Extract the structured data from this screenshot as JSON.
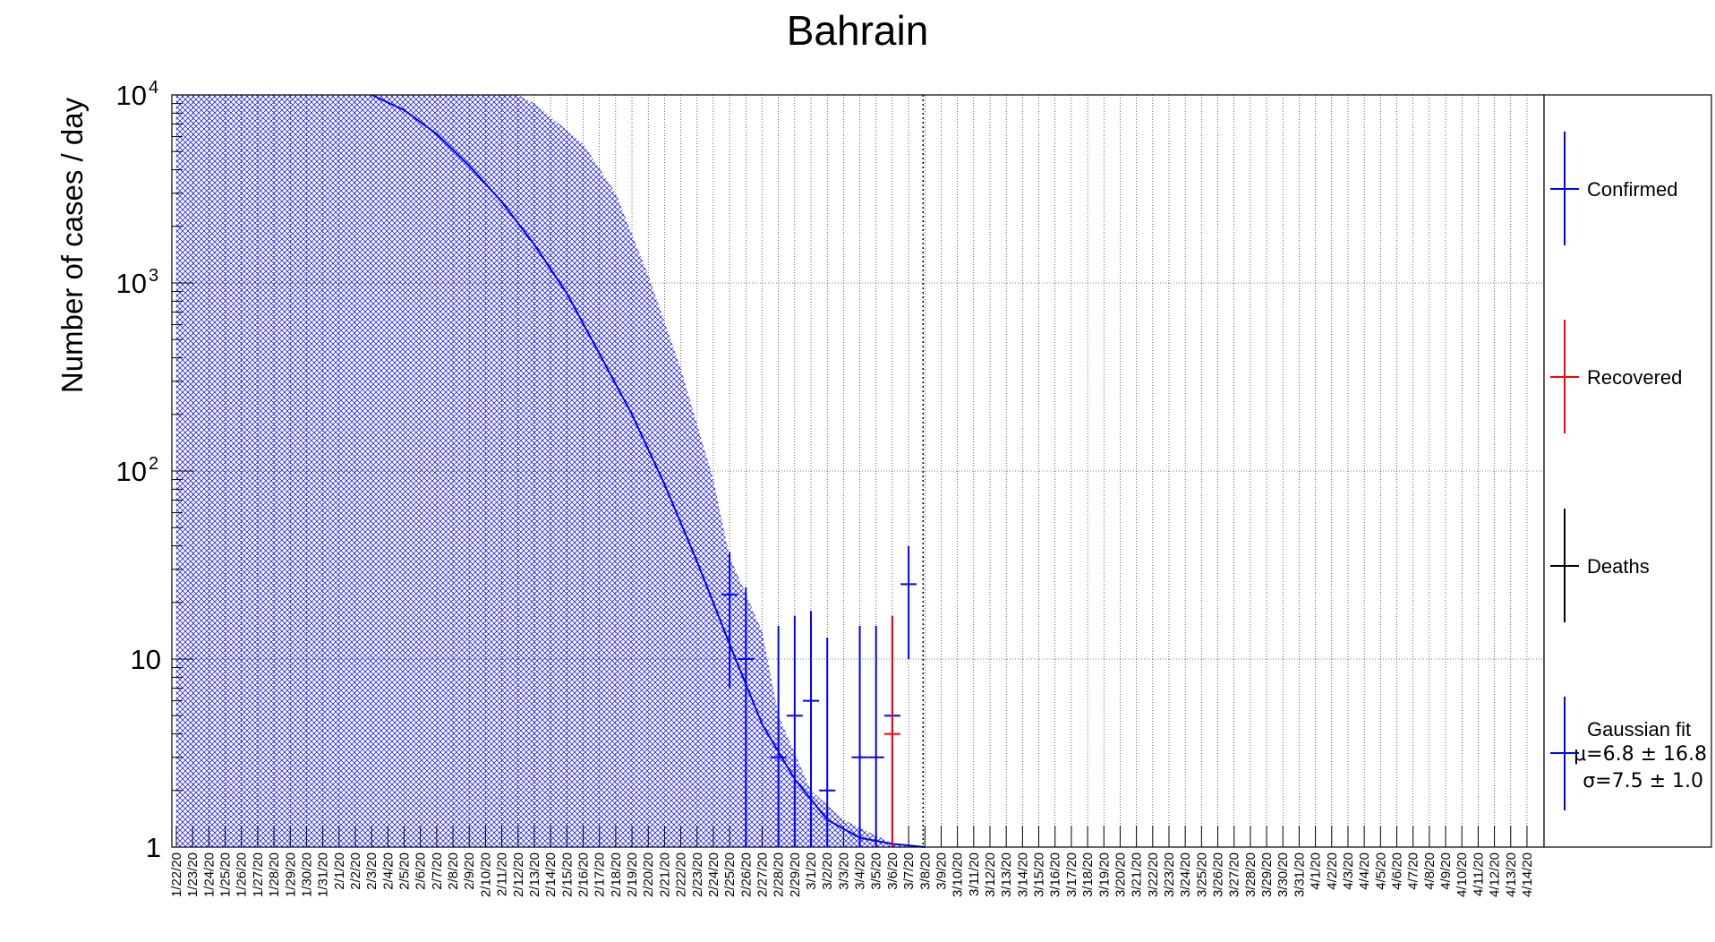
{
  "chart_data": {
    "type": "scatter",
    "title": "Bahrain",
    "xlabel": "",
    "ylabel": "Number of cases / day",
    "y_scale": "log",
    "ylim": [
      1,
      10000
    ],
    "y_tick_labels": [
      {
        "value": 1,
        "base": "1",
        "exp": ""
      },
      {
        "value": 10,
        "base": "10",
        "exp": ""
      },
      {
        "value": 100,
        "base": "10",
        "exp": "2"
      },
      {
        "value": 1000,
        "base": "10",
        "exp": "3"
      },
      {
        "value": 10000,
        "base": "10",
        "exp": "4"
      }
    ],
    "grid": true,
    "categories": [
      "1/22/20",
      "1/23/20",
      "1/24/20",
      "1/25/20",
      "1/26/20",
      "1/27/20",
      "1/28/20",
      "1/29/20",
      "1/30/20",
      "1/31/20",
      "2/1/20",
      "2/2/20",
      "2/3/20",
      "2/4/20",
      "2/5/20",
      "2/6/20",
      "2/7/20",
      "2/8/20",
      "2/9/20",
      "2/10/20",
      "2/11/20",
      "2/12/20",
      "2/13/20",
      "2/14/20",
      "2/15/20",
      "2/16/20",
      "2/17/20",
      "2/18/20",
      "2/19/20",
      "2/20/20",
      "2/21/20",
      "2/22/20",
      "2/23/20",
      "2/24/20",
      "2/25/20",
      "2/26/20",
      "2/27/20",
      "2/28/20",
      "2/29/20",
      "3/1/20",
      "3/2/20",
      "3/3/20",
      "3/4/20",
      "3/5/20",
      "3/6/20",
      "3/7/20",
      "3/8/20",
      "3/9/20",
      "3/10/20",
      "3/11/20",
      "3/12/20",
      "3/13/20",
      "3/14/20",
      "3/15/20",
      "3/16/20",
      "3/17/20",
      "3/18/20",
      "3/19/20",
      "3/20/20",
      "3/21/20",
      "3/22/20",
      "3/23/20",
      "3/24/20",
      "3/25/20",
      "3/26/20",
      "3/27/20",
      "3/28/20",
      "3/29/20",
      "3/30/20",
      "3/31/20",
      "4/1/20",
      "4/2/20",
      "4/3/20",
      "4/4/20",
      "4/5/20",
      "4/6/20",
      "4/7/20",
      "4/8/20",
      "4/9/20",
      "4/10/20",
      "4/11/20",
      "4/12/20",
      "4/13/20",
      "4/14/20"
    ],
    "series": [
      {
        "name": "Confirmed",
        "color": "#0000ff",
        "points": [
          {
            "date": "2/25/20",
            "y": 22,
            "err_low": 7,
            "err_high": 37
          },
          {
            "date": "2/26/20",
            "y": 10,
            "err_low": 1,
            "err_high": 24
          },
          {
            "date": "2/28/20",
            "y": 3,
            "err_low": 1,
            "err_high": 15
          },
          {
            "date": "2/29/20",
            "y": 5,
            "err_low": 1,
            "err_high": 17
          },
          {
            "date": "3/1/20",
            "y": 6,
            "err_low": 1,
            "err_high": 18
          },
          {
            "date": "3/2/20",
            "y": 2,
            "err_low": 1,
            "err_high": 13
          },
          {
            "date": "3/4/20",
            "y": 3,
            "err_low": 1,
            "err_high": 15
          },
          {
            "date": "3/5/20",
            "y": 3,
            "err_low": 1,
            "err_high": 15
          },
          {
            "date": "3/6/20",
            "y": 5,
            "err_low": 1,
            "err_high": 17
          },
          {
            "date": "3/7/20",
            "y": 25,
            "err_low": 10,
            "err_high": 40
          }
        ]
      },
      {
        "name": "Recovered",
        "color": "#ff0000",
        "points": [
          {
            "date": "3/6/20",
            "y": 4,
            "err_low": 1,
            "err_high": 17
          }
        ]
      },
      {
        "name": "Deaths",
        "color": "#000000",
        "points": []
      },
      {
        "name": "Gaussian fit",
        "color": "#0000ff",
        "fit": {
          "mu_label": "μ=6.8 ± 16.8",
          "sigma_label": "σ=7.5 ± 1.0"
        },
        "curve": [
          {
            "date": "2/3/20",
            "y": 10000
          },
          {
            "date": "2/5/20",
            "y": 8300
          },
          {
            "date": "2/7/20",
            "y": 6200
          },
          {
            "date": "2/9/20",
            "y": 4200
          },
          {
            "date": "2/11/20",
            "y": 2700
          },
          {
            "date": "2/13/20",
            "y": 1600
          },
          {
            "date": "2/15/20",
            "y": 880
          },
          {
            "date": "2/17/20",
            "y": 420
          },
          {
            "date": "2/19/20",
            "y": 200
          },
          {
            "date": "2/21/20",
            "y": 85
          },
          {
            "date": "2/23/20",
            "y": 33
          },
          {
            "date": "2/25/20",
            "y": 12
          },
          {
            "date": "2/27/20",
            "y": 4.5
          },
          {
            "date": "2/29/20",
            "y": 2.3
          },
          {
            "date": "3/2/20",
            "y": 1.4
          },
          {
            "date": "3/4/20",
            "y": 1.12
          },
          {
            "date": "3/6/20",
            "y": 1.04
          },
          {
            "date": "3/8/20",
            "y": 1.0
          }
        ],
        "band_upper": [
          {
            "date": "1/22/20",
            "y": 10000
          },
          {
            "date": "2/12/20",
            "y": 10000
          },
          {
            "date": "2/13/20",
            "y": 9000
          },
          {
            "date": "2/16/20",
            "y": 5500
          },
          {
            "date": "2/18/20",
            "y": 3000
          },
          {
            "date": "2/20/20",
            "y": 1100
          },
          {
            "date": "2/22/20",
            "y": 350
          },
          {
            "date": "2/24/20",
            "y": 90
          },
          {
            "date": "2/25/20",
            "y": 35
          },
          {
            "date": "2/27/20",
            "y": 14
          },
          {
            "date": "2/28/20",
            "y": 5
          },
          {
            "date": "3/1/20",
            "y": 2
          },
          {
            "date": "3/3/20",
            "y": 1.4
          },
          {
            "date": "3/5/20",
            "y": 1.15
          },
          {
            "date": "3/6/20",
            "y": 1.05
          },
          {
            "date": "3/7/20",
            "y": 1.0
          }
        ]
      }
    ],
    "legend": {
      "position": "right",
      "entries": [
        {
          "label": "Confirmed",
          "color": "#0000ff"
        },
        {
          "label": "Recovered",
          "color": "#ff0000"
        },
        {
          "label": "Deaths",
          "color": "#000000"
        },
        {
          "label": "Gaussian fit",
          "color": "#0000ff"
        }
      ],
      "fit_line1": "μ=6.8 ± 16.8",
      "fit_line2": "σ=7.5 ± 1.0"
    },
    "vertical_marker_date": "3/8/20"
  }
}
